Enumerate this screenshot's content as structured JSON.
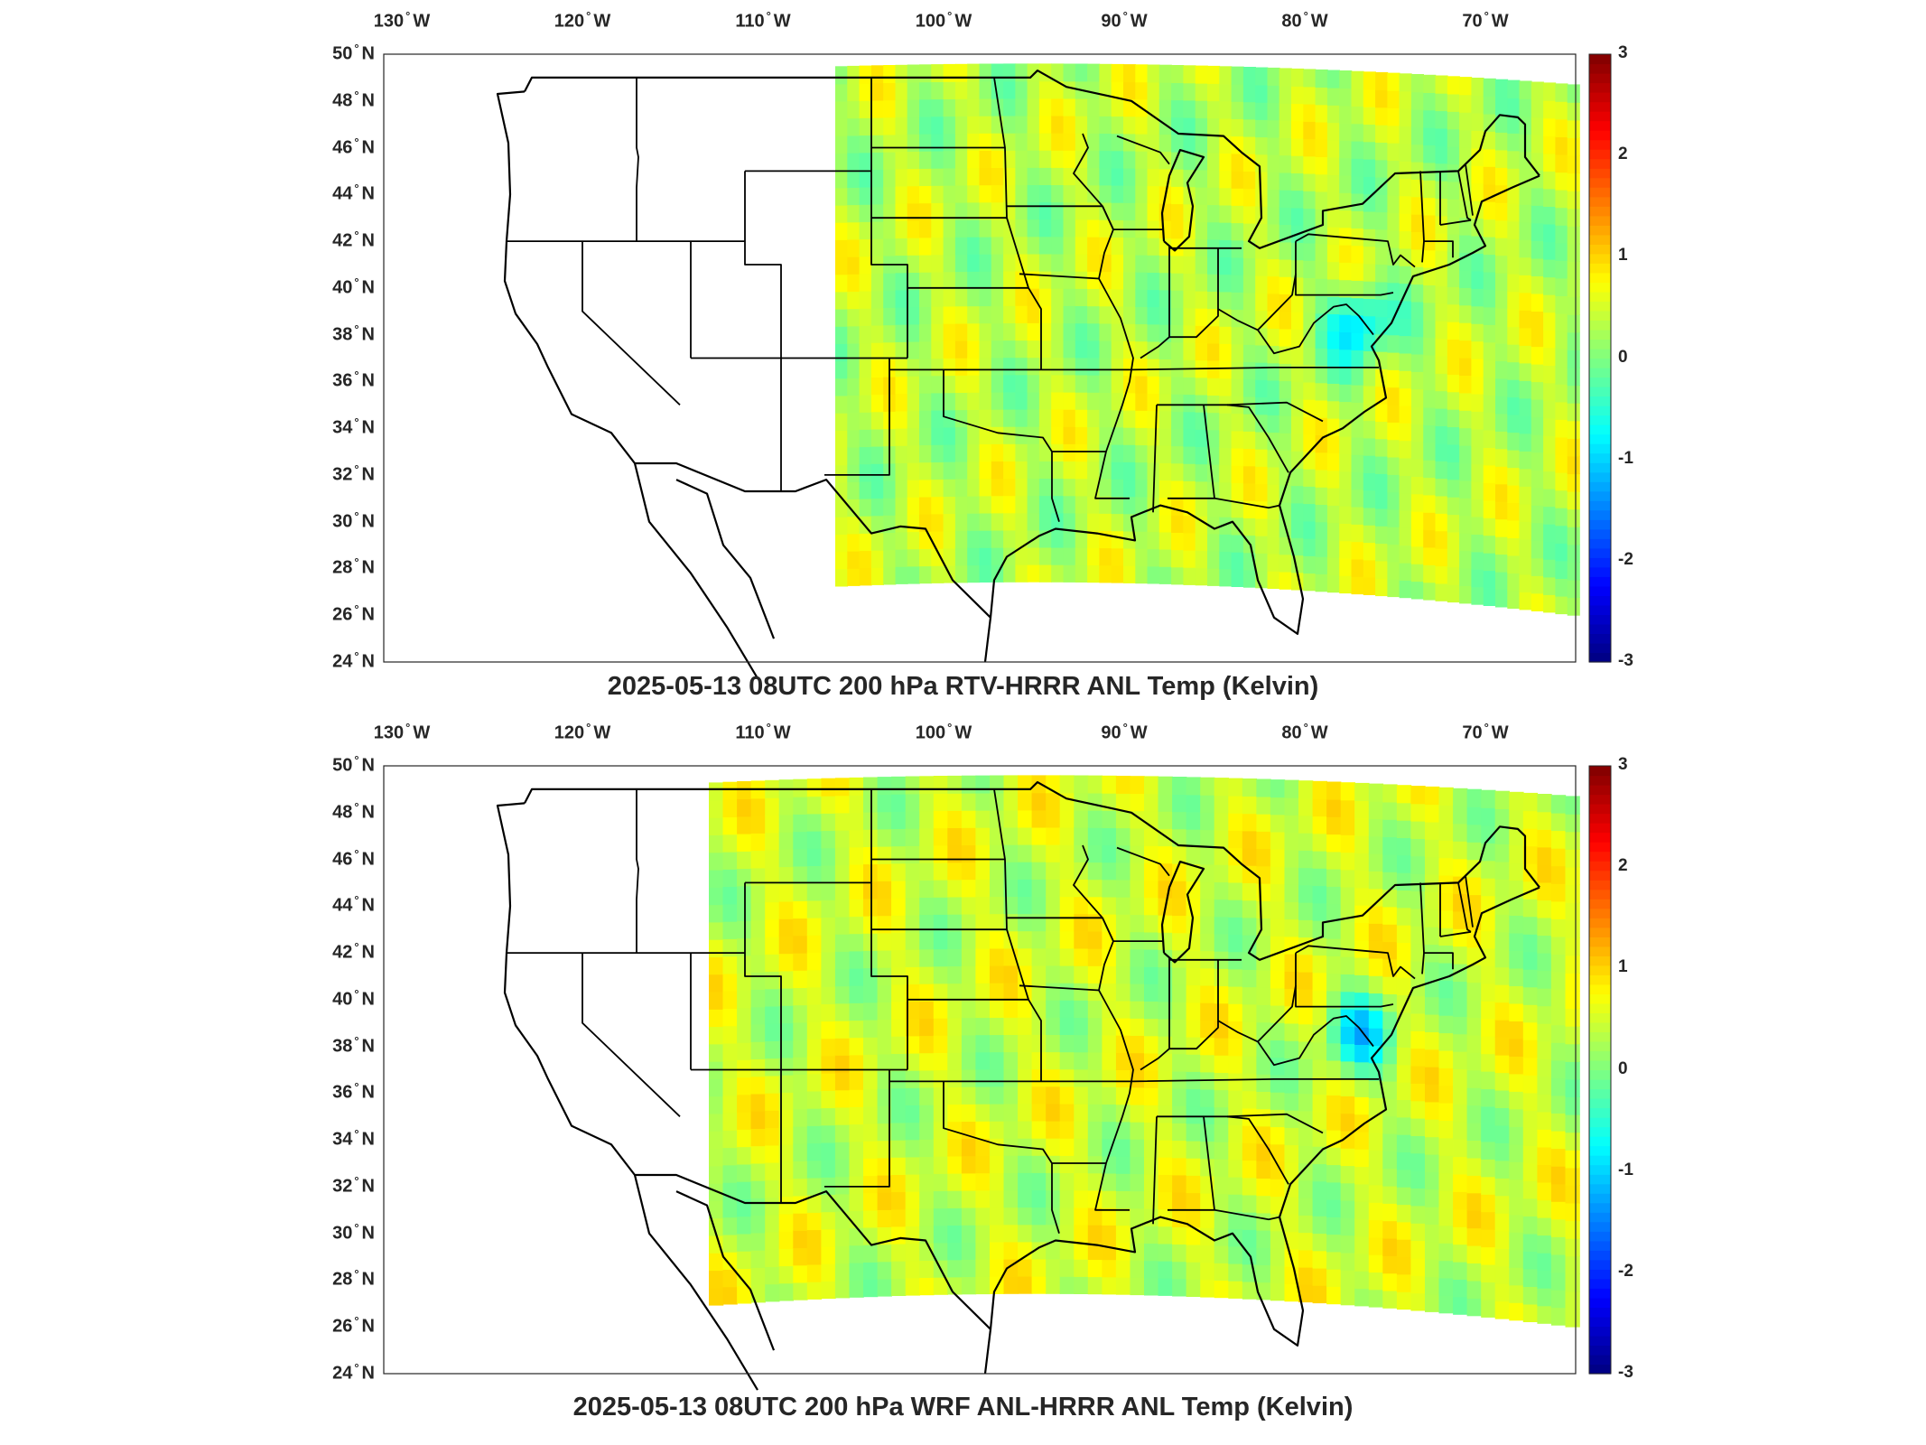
{
  "panels": [
    {
      "title": "2025-05-13 08UTC 200 hPa RTV-HRRR ANL Temp (Kelvin)",
      "lon_labels": [
        {
          "deg": "130",
          "hem": "W"
        },
        {
          "deg": "120",
          "hem": "W"
        },
        {
          "deg": "110",
          "hem": "W"
        },
        {
          "deg": "100",
          "hem": "W"
        },
        {
          "deg": "90",
          "hem": "W"
        },
        {
          "deg": "80",
          "hem": "W"
        },
        {
          "deg": "70",
          "hem": "W"
        }
      ],
      "lat_labels": [
        {
          "deg": "50",
          "hem": "N"
        },
        {
          "deg": "48",
          "hem": "N"
        },
        {
          "deg": "46",
          "hem": "N"
        },
        {
          "deg": "44",
          "hem": "N"
        },
        {
          "deg": "42",
          "hem": "N"
        },
        {
          "deg": "40",
          "hem": "N"
        },
        {
          "deg": "38",
          "hem": "N"
        },
        {
          "deg": "36",
          "hem": "N"
        },
        {
          "deg": "34",
          "hem": "N"
        },
        {
          "deg": "32",
          "hem": "N"
        },
        {
          "deg": "30",
          "hem": "N"
        },
        {
          "deg": "28",
          "hem": "N"
        },
        {
          "deg": "26",
          "hem": "N"
        },
        {
          "deg": "24",
          "hem": "N"
        }
      ],
      "colorbar_ticks": [
        "3",
        "2",
        "1",
        "0",
        "-1",
        "-2",
        "-3"
      ],
      "field_west_lon": -106,
      "field_mean": 0.35,
      "field_note": "data coverage begins near 106 W (east of Rockies)"
    },
    {
      "title": "2025-05-13 08UTC 200 hPa WRF ANL-HRRR ANL Temp (Kelvin)",
      "lon_labels": [
        {
          "deg": "130",
          "hem": "W"
        },
        {
          "deg": "120",
          "hem": "W"
        },
        {
          "deg": "110",
          "hem": "W"
        },
        {
          "deg": "100",
          "hem": "W"
        },
        {
          "deg": "90",
          "hem": "W"
        },
        {
          "deg": "80",
          "hem": "W"
        },
        {
          "deg": "70",
          "hem": "W"
        }
      ],
      "lat_labels": [
        {
          "deg": "50",
          "hem": "N"
        },
        {
          "deg": "48",
          "hem": "N"
        },
        {
          "deg": "46",
          "hem": "N"
        },
        {
          "deg": "44",
          "hem": "N"
        },
        {
          "deg": "42",
          "hem": "N"
        },
        {
          "deg": "40",
          "hem": "N"
        },
        {
          "deg": "38",
          "hem": "N"
        },
        {
          "deg": "36",
          "hem": "N"
        },
        {
          "deg": "34",
          "hem": "N"
        },
        {
          "deg": "32",
          "hem": "N"
        },
        {
          "deg": "30",
          "hem": "N"
        },
        {
          "deg": "28",
          "hem": "N"
        },
        {
          "deg": "26",
          "hem": "N"
        },
        {
          "deg": "24",
          "hem": "N"
        }
      ],
      "colorbar_ticks": [
        "3",
        "2",
        "1",
        "0",
        "-1",
        "-2",
        "-3"
      ],
      "field_west_lon": -113,
      "field_mean": 0.45,
      "field_note": "data coverage begins near 113 W"
    }
  ],
  "colormap": "jet",
  "colorbar_range": [
    -3,
    3
  ],
  "map_extent": {
    "lon": [
      -131,
      -65
    ],
    "lat": [
      24,
      50
    ]
  }
}
